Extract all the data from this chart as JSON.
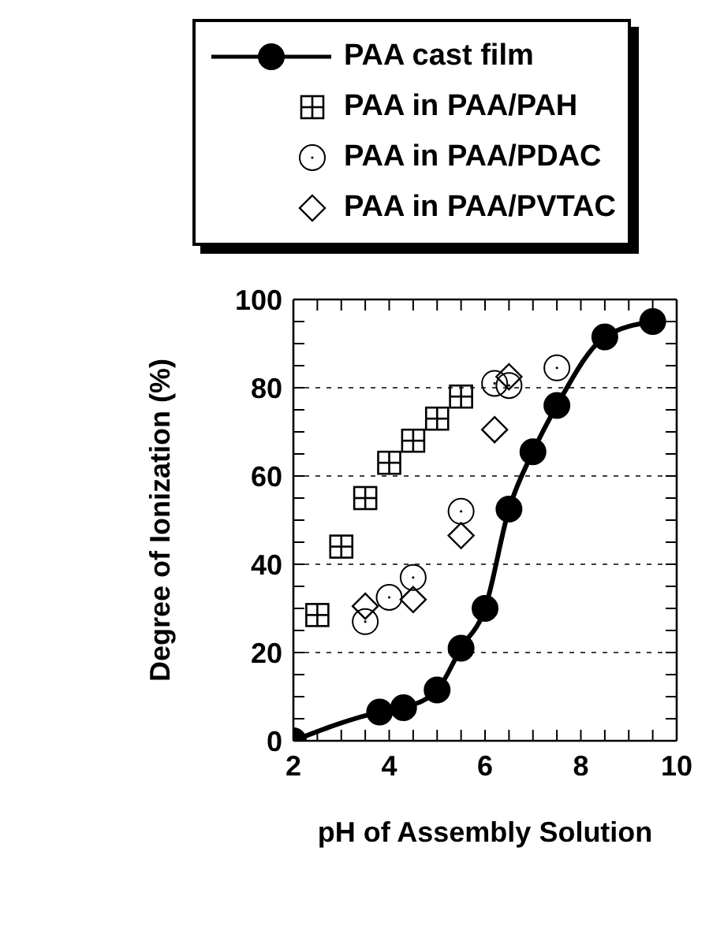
{
  "chart_data": {
    "type": "scatter",
    "xlabel": "pH of Assembly Solution",
    "ylabel": "Degree of Ionization (%)",
    "xlim": [
      2,
      10
    ],
    "xticks": [
      2,
      {
        "value": 2.5,
        "label": null
      },
      {
        "value": 3,
        "label": null
      },
      {
        "value": 3.5,
        "label": null
      },
      4,
      {
        "value": 4.5,
        "label": null
      },
      {
        "value": 5,
        "label": null
      },
      {
        "value": 5.5,
        "label": null
      },
      6,
      {
        "value": 6.5,
        "label": null
      },
      {
        "value": 7,
        "label": null
      },
      {
        "value": 7.5,
        "label": null
      },
      8,
      {
        "value": 8.5,
        "label": null
      },
      {
        "value": 9,
        "label": null
      },
      {
        "value": 9.5,
        "label": null
      },
      10
    ],
    "ylim": [
      0,
      100
    ],
    "yticks": [
      0,
      {
        "value": 5,
        "label": null
      },
      {
        "value": 10,
        "label": null
      },
      {
        "value": 15,
        "label": null
      },
      20,
      {
        "value": 25,
        "label": null
      },
      {
        "value": 30,
        "label": null
      },
      {
        "value": 35,
        "label": null
      },
      40,
      {
        "value": 45,
        "label": null
      },
      {
        "value": 50,
        "label": null
      },
      {
        "value": 55,
        "label": null
      },
      60,
      {
        "value": 65,
        "label": null
      },
      {
        "value": 70,
        "label": null
      },
      {
        "value": 75,
        "label": null
      },
      80,
      {
        "value": 85,
        "label": null
      },
      {
        "value": 90,
        "label": null
      },
      {
        "value": 95,
        "label": null
      },
      100
    ],
    "grid": "y",
    "legend": "top",
    "series": [
      {
        "name": "PAA cast film",
        "type": "line",
        "marker": "circle",
        "color": "#000000",
        "x": [
          2,
          3.8,
          4.3,
          5,
          5.5,
          6,
          6.5,
          7,
          7.5,
          8.5,
          9.5
        ],
        "values": [
          0,
          6.5,
          7.5,
          11.5,
          21,
          30,
          52.5,
          65.5,
          76,
          91.5,
          95
        ]
      },
      {
        "name": "PAA in PAA/PAH",
        "marker": "square",
        "color": "#000000",
        "x": [
          2.5,
          3,
          3.5,
          4,
          4.5,
          5,
          5.5
        ],
        "values": [
          28.5,
          44,
          55,
          63,
          68,
          73,
          78
        ]
      },
      {
        "name": "PAA in PAA/PDAC",
        "marker": "circle",
        "color": "#000000",
        "x": [
          3.5,
          4,
          4.5,
          5.5,
          6.2,
          6.5,
          7.5
        ],
        "values": [
          27,
          32.5,
          37,
          52,
          81,
          80.5,
          84.5
        ]
      },
      {
        "name": "PAA in PAA/PVTAC",
        "marker": "diamond",
        "color": "#000000",
        "x": [
          3.5,
          4.5,
          5.5,
          6.2,
          6.5
        ],
        "values": [
          30.5,
          32,
          46.5,
          70.5,
          82.5
        ]
      }
    ]
  }
}
